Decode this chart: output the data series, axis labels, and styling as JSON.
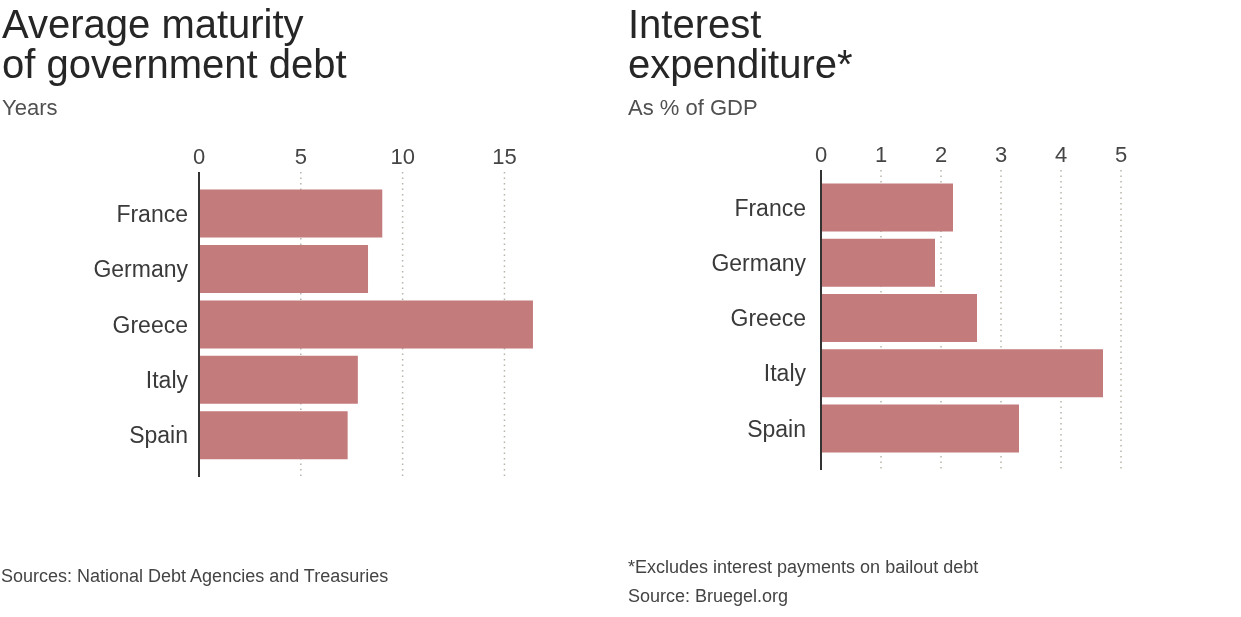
{
  "chart_data": [
    {
      "type": "bar",
      "orientation": "horizontal",
      "title": "Average maturity\nof government debt",
      "subtitle": "Years",
      "categories": [
        "France",
        "Germany",
        "Greece",
        "Italy",
        "Spain"
      ],
      "values": [
        9.0,
        8.3,
        16.4,
        7.8,
        7.3
      ],
      "color": "#c47b7b",
      "xlim": [
        0,
        16.5
      ],
      "xticks": [
        0,
        5,
        10,
        15
      ],
      "grid": "x",
      "annotations": [
        "Sources: National Debt Agencies and Treasuries"
      ]
    },
    {
      "type": "bar",
      "orientation": "horizontal",
      "title": "Interest\nexpenditure*",
      "subtitle": "As % of GDP",
      "categories": [
        "France",
        "Germany",
        "Greece",
        "Italy",
        "Spain"
      ],
      "values": [
        2.2,
        1.9,
        2.6,
        4.7,
        3.3
      ],
      "color": "#c47b7b",
      "xlim": [
        0,
        5
      ],
      "xticks": [
        0,
        1,
        2,
        3,
        4,
        5
      ],
      "grid": "x",
      "annotations": [
        "*Excludes interest payments on bailout debt",
        "Source: Bruegel.org"
      ]
    }
  ]
}
